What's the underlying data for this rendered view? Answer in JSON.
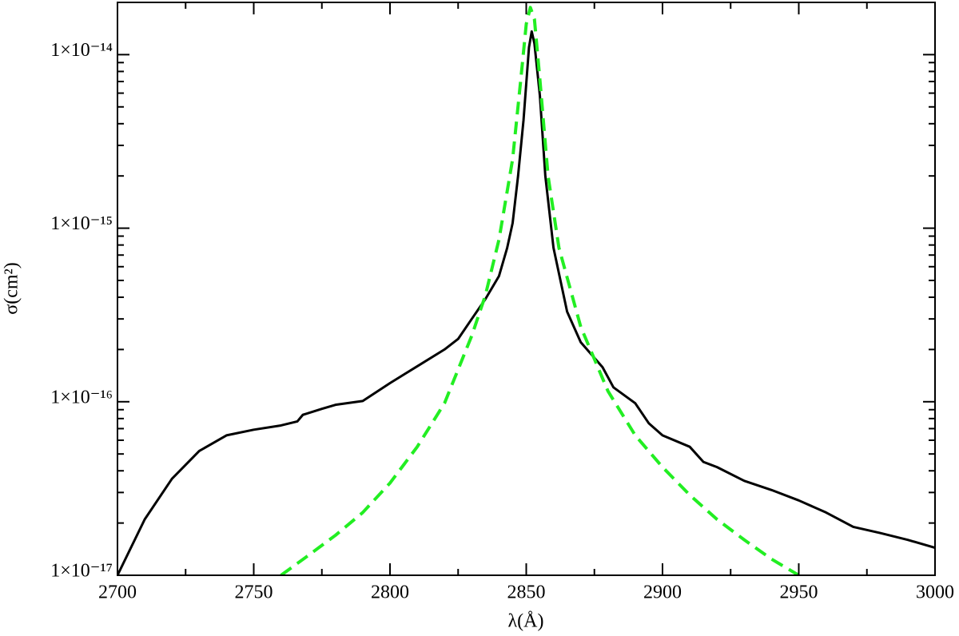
{
  "chart_data": {
    "type": "line",
    "xlabel": "λ(Å)",
    "ylabel": "σ(cm²)",
    "log_y": true,
    "xlim": [
      2700,
      3000
    ],
    "xticks": [
      2700,
      2750,
      2800,
      2850,
      2900,
      2950,
      3000
    ],
    "xminor_ticks": [
      2725,
      2775,
      2825,
      2875,
      2925,
      2975
    ],
    "ylim": [
      1e-17,
      2e-14
    ],
    "yticks": [
      {
        "value": 1e-17,
        "label": "1×10⁻¹⁷"
      },
      {
        "value": 1e-16,
        "label": "1×10⁻¹⁶"
      },
      {
        "value": 1e-15,
        "label": "1×10⁻¹⁵"
      },
      {
        "value": 1e-14,
        "label": "1×10⁻¹⁴"
      }
    ],
    "yminor_ticks": [
      2e-17,
      3e-17,
      4e-17,
      5e-17,
      6e-17,
      7e-17,
      8e-17,
      9e-17,
      2e-16,
      3e-16,
      4e-16,
      5e-16,
      6e-16,
      7e-16,
      8e-16,
      9e-16,
      2e-15,
      3e-15,
      4e-15,
      5e-15,
      6e-15,
      7e-15,
      8e-15,
      9e-15
    ],
    "series": [
      {
        "color": "#000000",
        "dash": false,
        "x": [
          2700,
          2710,
          2720,
          2730,
          2740,
          2750,
          2760,
          2766,
          2768,
          2775,
          2780,
          2790,
          2800,
          2810,
          2820,
          2825,
          2830,
          2835,
          2840,
          2843,
          2845,
          2847,
          2849,
          2851,
          2852,
          2853,
          2855,
          2857,
          2860,
          2865,
          2870,
          2878,
          2882,
          2890,
          2895,
          2900,
          2910,
          2915,
          2920,
          2930,
          2940,
          2950,
          2960,
          2970,
          2980,
          2990,
          3000
        ],
        "values": [
          1e-17,
          2.1e-17,
          3.6e-17,
          5.2e-17,
          6.4e-17,
          6.9e-17,
          7.3e-17,
          7.7e-17,
          8.4e-17,
          9.1e-17,
          9.6e-17,
          1.01e-16,
          1.28e-16,
          1.6e-16,
          2e-16,
          2.3e-16,
          3e-16,
          3.9e-16,
          5.3e-16,
          7.7e-16,
          1.07e-15,
          2e-15,
          4.2e-15,
          1.1e-14,
          1.36e-14,
          1.16e-14,
          5.8e-15,
          2e-15,
          7.7e-16,
          3.3e-16,
          2.2e-16,
          1.58e-16,
          1.21e-16,
          9.8e-17,
          7.5e-17,
          6.4e-17,
          5.5e-17,
          4.5e-17,
          4.2e-17,
          3.5e-17,
          3.1e-17,
          2.7e-17,
          2.3e-17,
          1.9e-17,
          1.75e-17,
          1.6e-17,
          1.44e-17
        ]
      },
      {
        "color": "#22ee22",
        "dash": true,
        "x": [
          2760,
          2770,
          2780,
          2790,
          2800,
          2810,
          2820,
          2830,
          2835,
          2840,
          2845,
          2848,
          2850,
          2851.5,
          2853,
          2855,
          2858,
          2862,
          2870,
          2880,
          2890,
          2900,
          2910,
          2920,
          2930,
          2940,
          2950
        ],
        "values": [
          1e-17,
          1.3e-17,
          1.7e-17,
          2.3e-17,
          3.4e-17,
          5.5e-17,
          9.8e-17,
          2.4e-16,
          4.1e-16,
          8.6e-16,
          2.5e-15,
          7.2e-15,
          1.5e-14,
          1.87e-14,
          1.6e-14,
          7.2e-15,
          2e-15,
          7.7e-16,
          2.7e-16,
          1.15e-16,
          6.4e-17,
          4.2e-17,
          2.9e-17,
          2.1e-17,
          1.6e-17,
          1.24e-17,
          1e-17
        ]
      }
    ]
  }
}
